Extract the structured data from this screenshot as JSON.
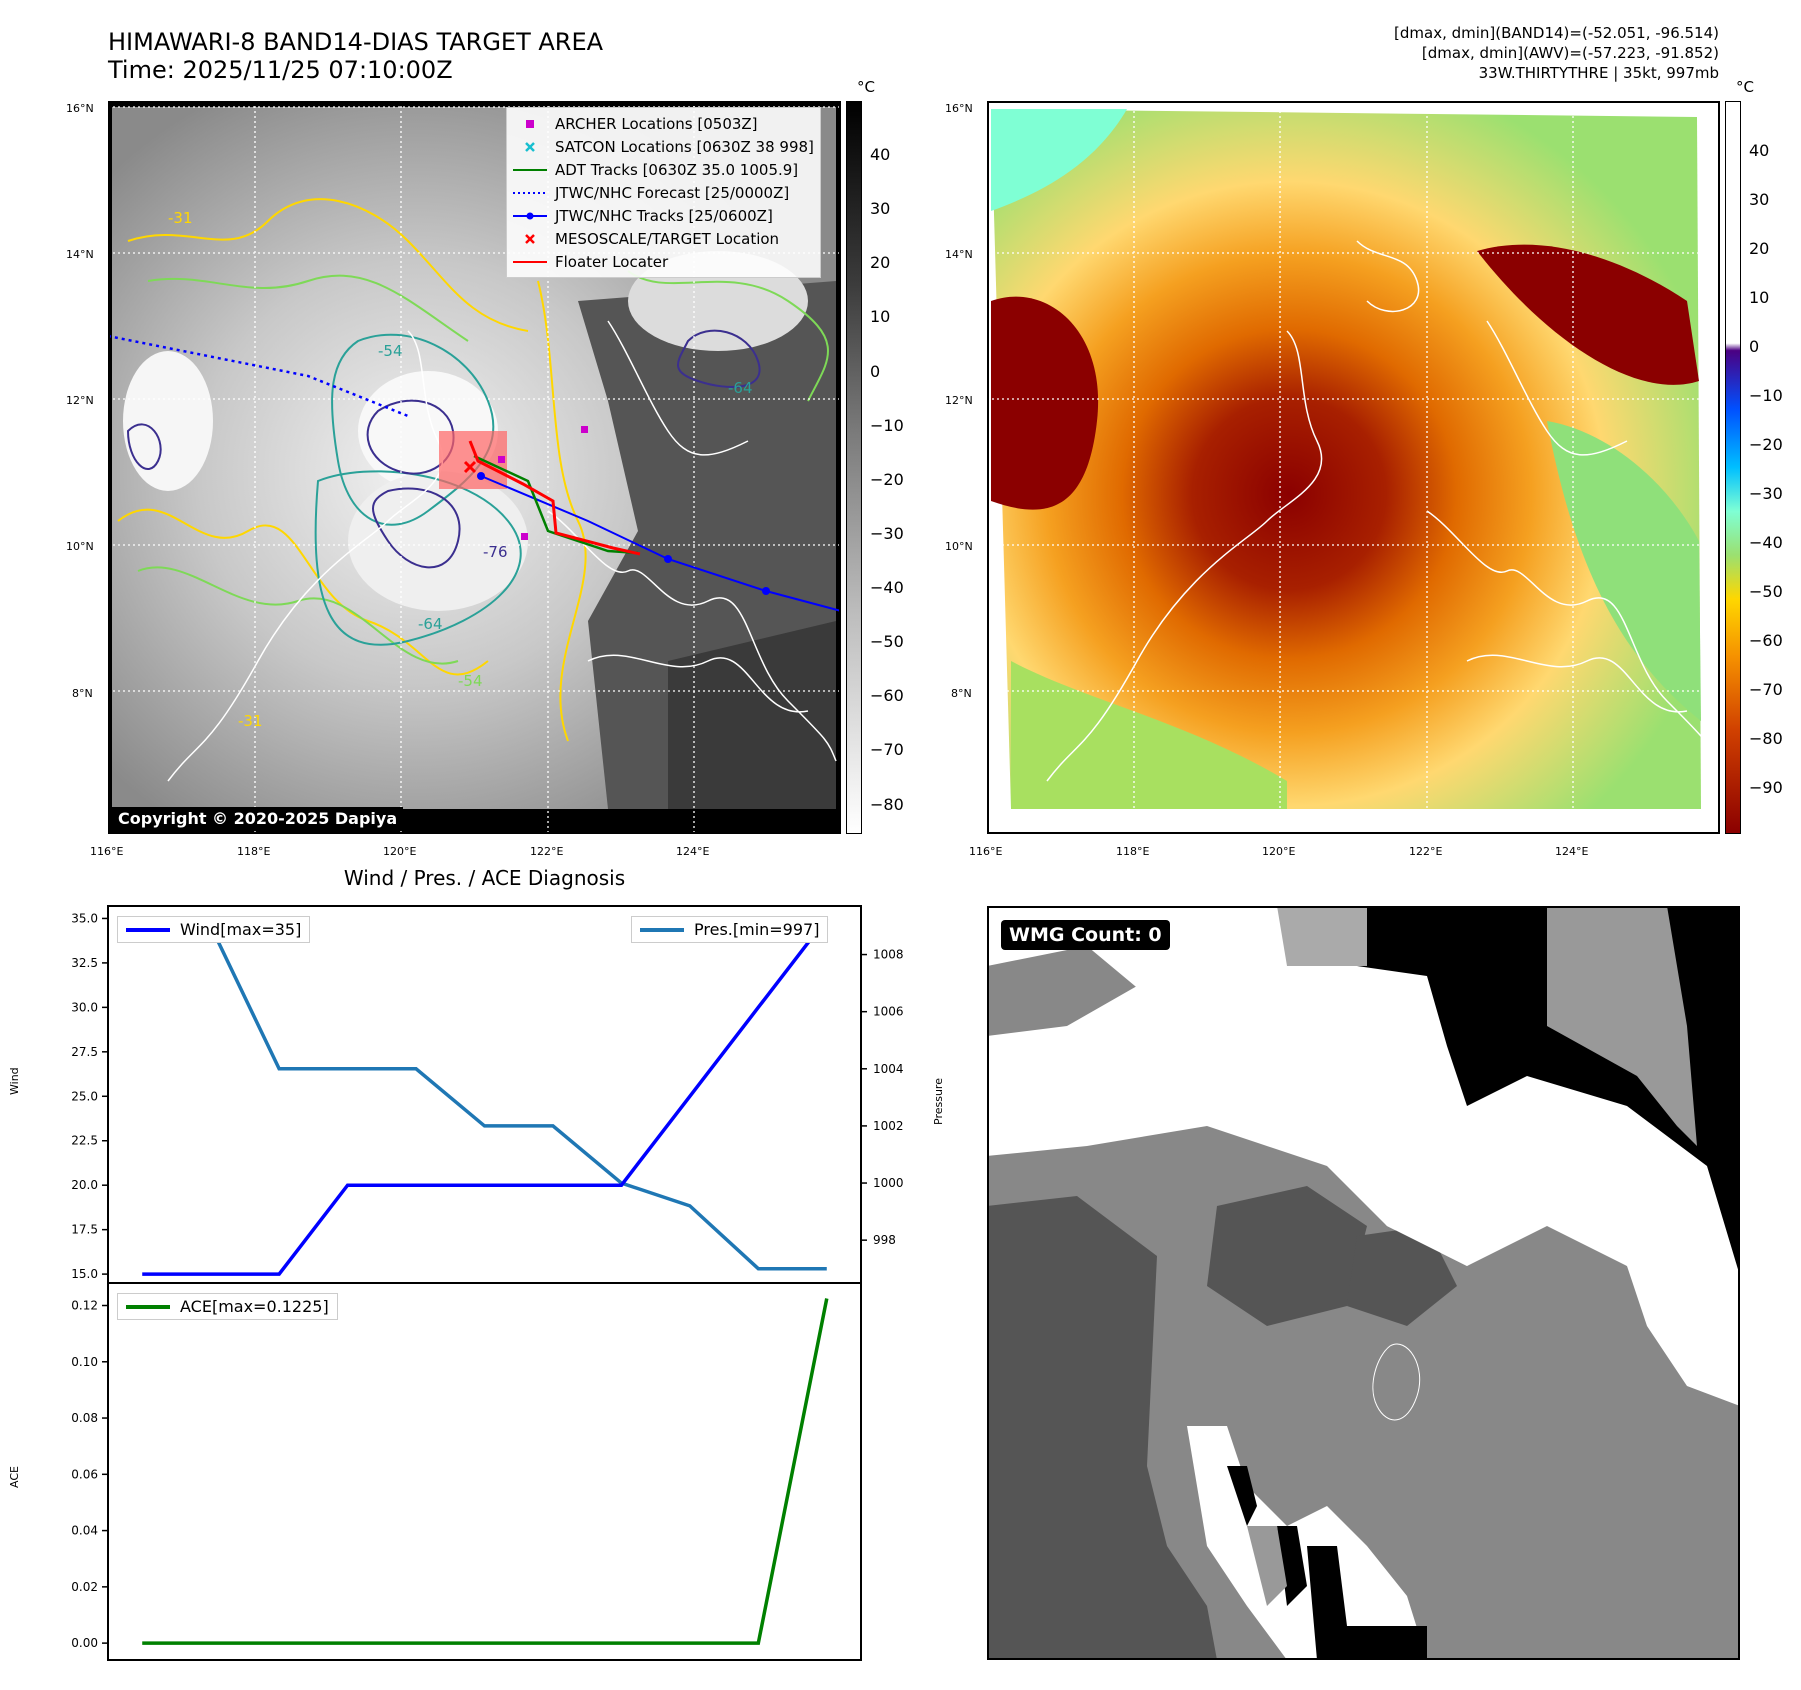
{
  "header": {
    "title_line1": "HIMAWARI-8 BAND14-DIAS TARGET AREA",
    "title_line2": "Time: 2025/11/25 07:10:00Z",
    "info_line1": "[dmax, dmin](BAND14)=(-52.051, -96.514)",
    "info_line2": "[dmax, dmin](AWV)=(-57.223, -91.852)",
    "info_line3": "33W.THIRTYTHRE | 35kt, 997mb"
  },
  "map_axes": {
    "lat_labels": [
      "16°N",
      "14°N",
      "12°N",
      "10°N",
      "8°N"
    ],
    "lon_labels": [
      "116°E",
      "118°E",
      "120°E",
      "122°E",
      "124°E"
    ]
  },
  "left_map": {
    "colorbar_unit": "°C",
    "colorbar_labels": [
      "40",
      "30",
      "20",
      "10",
      "0",
      "−10",
      "−20",
      "−30",
      "−40",
      "−50",
      "−60",
      "−70",
      "−80"
    ],
    "contour_labels": [
      "-31",
      "-54",
      "-64",
      "-76",
      "-64",
      "-54",
      "-31"
    ],
    "copyright": "Copyright © 2020-2025 Dapiya",
    "legend": [
      {
        "label": "ARCHER Locations [0503Z]",
        "color": "#cc00cc"
      },
      {
        "label": "SATCON Locations [0630Z 38 998]",
        "color": "#17becf"
      },
      {
        "label": "ADT Tracks [0630Z 35.0 1005.9]",
        "color": "#008000"
      },
      {
        "label": "JTWC/NHC Forecast [25/0000Z]",
        "color": "#0000ff"
      },
      {
        "label": "JTWC/NHC Tracks [25/0600Z]",
        "color": "#0000ff"
      },
      {
        "label": "MESOSCALE/TARGET Location",
        "color": "#ff0000"
      },
      {
        "label": "Floater Locater",
        "color": "#ff0000"
      }
    ]
  },
  "right_map": {
    "colorbar_unit": "°C",
    "colorbar_labels": [
      "40",
      "30",
      "20",
      "10",
      "0",
      "−10",
      "−20",
      "−30",
      "−40",
      "−50",
      "−60",
      "−70",
      "−80",
      "−90"
    ]
  },
  "diagnosis": {
    "title": "Wind / Pres. / ACE Diagnosis",
    "wind_ylabel": "Wind",
    "pres_ylabel": "Pressure",
    "ace_ylabel": "ACE",
    "wind_legend": "Wind[max=35]",
    "pres_legend": "Pres.[min=997]",
    "ace_legend": "ACE[max=0.1225]",
    "wind_ticks": [
      "35.0",
      "32.5",
      "30.0",
      "27.5",
      "25.0",
      "22.5",
      "20.0",
      "17.5",
      "15.0"
    ],
    "pres_ticks": [
      "1008",
      "1006",
      "1004",
      "1002",
      "1000",
      "998"
    ],
    "ace_ticks": [
      "0.12",
      "0.10",
      "0.08",
      "0.06",
      "0.04",
      "0.02",
      "0.00"
    ]
  },
  "wmg": {
    "label": "WMG Count: 0"
  },
  "chart_data": [
    {
      "type": "line",
      "title": "Wind / Pres. / ACE Diagnosis",
      "x": [
        0,
        1,
        2,
        3,
        4,
        5,
        6,
        7,
        8,
        9,
        10
      ],
      "series": [
        {
          "name": "Wind[max=35]",
          "axis": "left",
          "color": "#0000ff",
          "values": [
            15,
            15,
            15,
            20,
            20,
            20,
            20,
            20,
            25,
            30,
            35
          ]
        },
        {
          "name": "Pres.[min=997]",
          "axis": "right",
          "color": "#1f77b4",
          "values": [
            1009,
            1009,
            1004,
            1004,
            1004,
            1002,
            1002,
            1000,
            999.2,
            997,
            997
          ]
        }
      ],
      "ylabel": "Wind",
      "ylim": [
        14.5,
        35.7
      ],
      "y2label": "Pressure",
      "y2lim": [
        996.5,
        1009.7
      ]
    },
    {
      "type": "line",
      "x": [
        0,
        1,
        2,
        3,
        4,
        5,
        6,
        7,
        8,
        9,
        10
      ],
      "series": [
        {
          "name": "ACE[max=0.1225]",
          "color": "#008000",
          "values": [
            0,
            0,
            0,
            0,
            0,
            0,
            0,
            0,
            0,
            0,
            0.1225
          ]
        }
      ],
      "ylabel": "ACE",
      "ylim": [
        -0.006,
        0.128
      ]
    }
  ]
}
